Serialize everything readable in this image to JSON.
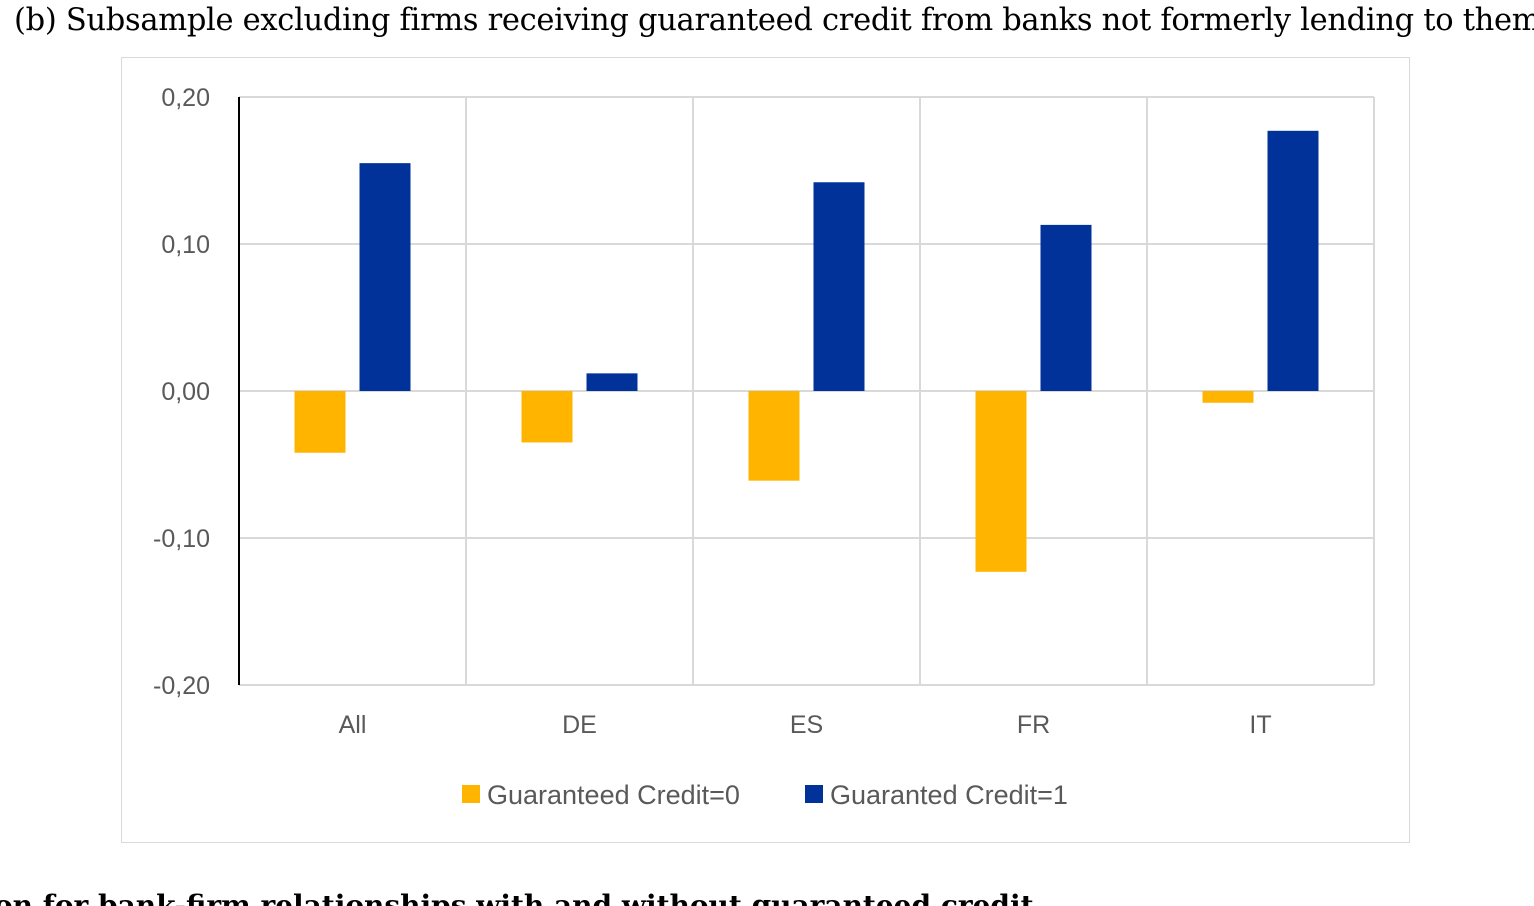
{
  "caption": "(b) Subsample excluding firms receiving guaranteed credit from banks not formerly lending to them",
  "footer_text": "on for bank-firm relationships with and without guaranteed credit",
  "chart_data": {
    "type": "bar",
    "title": "",
    "xlabel": "",
    "ylabel": "",
    "categories": [
      "All",
      "DE",
      "ES",
      "FR",
      "IT"
    ],
    "ylim": [
      -0.2,
      0.2
    ],
    "yticks": [
      "0,20",
      "0,10",
      "0,00",
      "-0,10",
      "-0,20"
    ],
    "ytick_values": [
      0.2,
      0.1,
      0.0,
      -0.1,
      -0.2
    ],
    "grid": true,
    "legend_position": "bottom",
    "series": [
      {
        "name": "Guaranteed Credit=0",
        "color": "#FFB400",
        "values": [
          -0.042,
          -0.035,
          -0.061,
          -0.123,
          -0.008
        ]
      },
      {
        "name": "Guaranted Credit=1",
        "color": "#003299",
        "values": [
          0.155,
          0.012,
          0.142,
          0.113,
          0.177
        ]
      }
    ]
  }
}
